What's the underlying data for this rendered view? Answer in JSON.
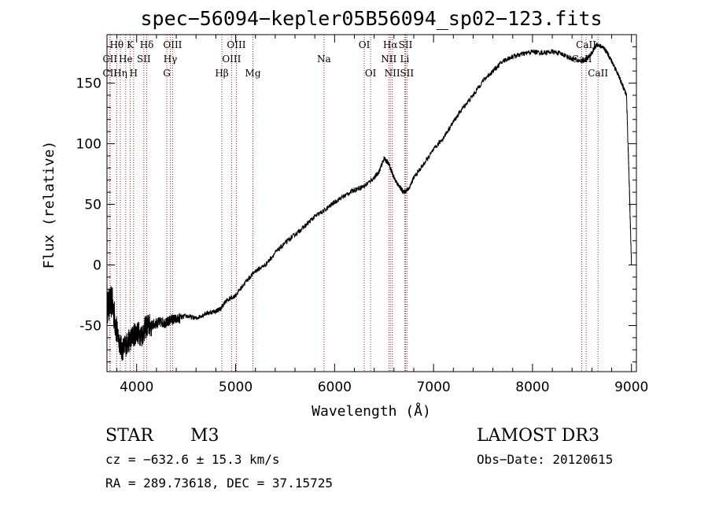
{
  "chart_data": {
    "type": "line",
    "title": "spec−56094−kepler05B56094_sp02−123.fits",
    "xlabel": "Wavelength (Å)",
    "ylabel": "Flux (relative)",
    "xlim": [
      3700,
      9050
    ],
    "ylim": [
      -88,
      190
    ],
    "x_ticks": [
      4000,
      5000,
      6000,
      7000,
      8000,
      9000
    ],
    "y_ticks": [
      -50,
      0,
      50,
      100,
      150
    ],
    "series": [
      {
        "name": "flux",
        "color": "#000000",
        "x": [
          3700,
          3750,
          3800,
          3850,
          3900,
          3950,
          4000,
          4050,
          4100,
          4150,
          4200,
          4250,
          4300,
          4350,
          4400,
          4500,
          4600,
          4700,
          4800,
          4850,
          4900,
          5000,
          5100,
          5200,
          5300,
          5400,
          5500,
          5600,
          5700,
          5800,
          5900,
          6000,
          6100,
          6200,
          6300,
          6400,
          6450,
          6500,
          6550,
          6600,
          6650,
          6700,
          6750,
          6800,
          6900,
          7000,
          7100,
          7200,
          7300,
          7400,
          7500,
          7600,
          7700,
          7800,
          7900,
          8000,
          8100,
          8200,
          8300,
          8400,
          8500,
          8550,
          8600,
          8650,
          8700,
          8750,
          8800,
          8850,
          8900,
          8950,
          8980,
          9000
        ],
        "y": [
          -35,
          -30,
          -55,
          -70,
          -65,
          -60,
          -55,
          -58,
          -50,
          -50,
          -48,
          -47,
          -48,
          -45,
          -45,
          -42,
          -44,
          -40,
          -38,
          -36,
          -30,
          -25,
          -14,
          -5,
          0,
          10,
          18,
          25,
          32,
          40,
          45,
          52,
          57,
          62,
          65,
          72,
          77,
          88,
          83,
          72,
          65,
          60,
          63,
          72,
          83,
          95,
          105,
          118,
          130,
          140,
          152,
          160,
          168,
          172,
          174,
          176,
          175,
          176,
          174,
          170,
          168,
          170,
          175,
          182,
          180,
          176,
          168,
          160,
          150,
          140,
          60,
          0
        ]
      }
    ],
    "spectral_lines": [
      {
        "label": "Hθ",
        "x": 3798,
        "row": 0
      },
      {
        "label": "K",
        "x": 3934,
        "row": 0
      },
      {
        "label": "Hδ",
        "x": 4102,
        "row": 0
      },
      {
        "label": "OIII",
        "x": 4363,
        "row": 0
      },
      {
        "label": "OIII",
        "x": 5007,
        "row": 0
      },
      {
        "label": "OI",
        "x": 6300,
        "row": 0
      },
      {
        "label": "Hα",
        "x": 6563,
        "row": 0
      },
      {
        "label": "SII",
        "x": 6717,
        "row": 0
      },
      {
        "label": "CaII",
        "x": 8542,
        "row": 0
      },
      {
        "label": "CII",
        "x": 3730,
        "row": 1
      },
      {
        "label": "He",
        "x": 3889,
        "row": 1
      },
      {
        "label": "SII",
        "x": 4072,
        "row": 1
      },
      {
        "label": "Hγ",
        "x": 4340,
        "row": 1
      },
      {
        "label": "OIII",
        "x": 4959,
        "row": 1
      },
      {
        "label": "Na",
        "x": 5893,
        "row": 1
      },
      {
        "label": "NII",
        "x": 6548,
        "row": 1
      },
      {
        "label": "Li",
        "x": 6708,
        "row": 1
      },
      {
        "label": "CaII",
        "x": 8498,
        "row": 1
      },
      {
        "label": "CII",
        "x": 3730,
        "row": 2
      },
      {
        "label": "Hη",
        "x": 3835,
        "row": 2
      },
      {
        "label": "H",
        "x": 3969,
        "row": 2
      },
      {
        "label": "G",
        "x": 4305,
        "row": 2
      },
      {
        "label": "Hβ",
        "x": 4861,
        "row": 2
      },
      {
        "label": "Mg",
        "x": 5175,
        "row": 2
      },
      {
        "label": "OI",
        "x": 6364,
        "row": 2
      },
      {
        "label": "NII",
        "x": 6583,
        "row": 2
      },
      {
        "label": "SII",
        "x": 6731,
        "row": 2
      },
      {
        "label": "CaII",
        "x": 8662,
        "row": 2
      }
    ],
    "line_color": "#b22222"
  },
  "info": {
    "object_class": "STAR",
    "subclass": "M3",
    "survey": "LAMOST DR3",
    "cz": "cz = −632.6 ± 15.3 km/s",
    "obs_date": "Obs−Date: 20120615",
    "coords": "RA = 289.73618, DEC =  37.15725"
  }
}
